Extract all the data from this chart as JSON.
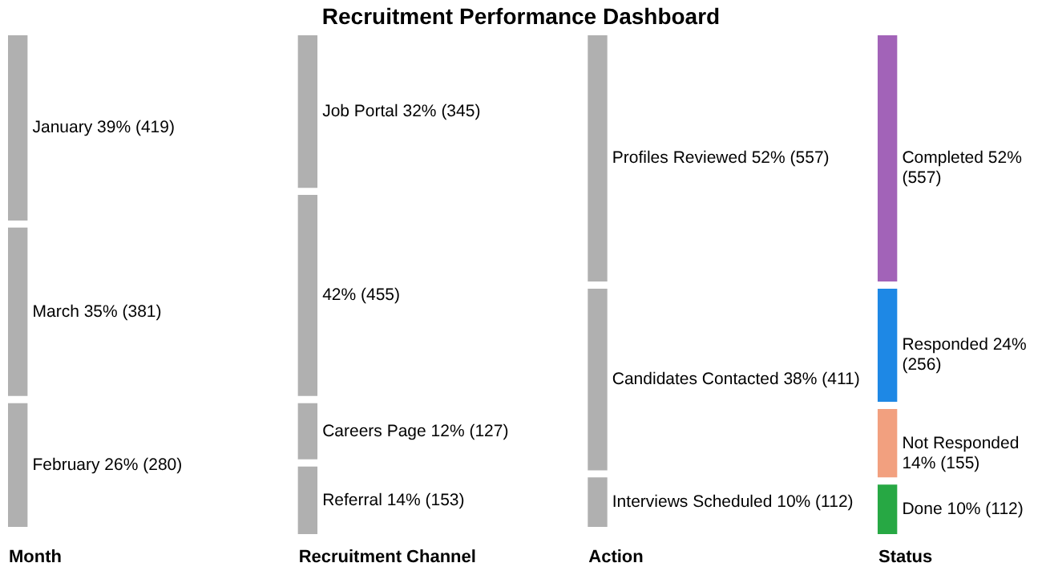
{
  "chart_data": {
    "type": "other",
    "title": "Recruitment Performance Dashboard",
    "categories": [
      "Month",
      "Recruitment Channel",
      "Action",
      "Status"
    ],
    "series": [
      {
        "values": [
          419,
          345,
          557,
          557
        ],
        "colors": [
          "#b0b0b0",
          "#b0b0b0",
          "#b0b0b0",
          "#a263b8"
        ],
        "value_labels": [
          "January 39% (419)",
          "Job Portal 32% (345)",
          "Profiles Reviewed 52% (557)",
          "Completed 52% (557)"
        ]
      },
      {
        "values": [
          381,
          455,
          411,
          256
        ],
        "colors": [
          "#b0b0b0",
          "#b0b0b0",
          "#b0b0b0",
          "#1e88e5"
        ],
        "value_labels": [
          "March 35% (381)",
          "42% (455)",
          "Candidates Contacted 38% (411)",
          "Responded 24% (256)"
        ]
      },
      {
        "values": [
          280,
          127,
          112,
          155
        ],
        "colors": [
          "#b0b0b0",
          "#b0b0b0",
          "#b0b0b0",
          "#f2a07f"
        ],
        "value_labels": [
          "February 26% (280)",
          "Careers Page 12% (127)",
          "Interviews Scheduled 10% (112)",
          "Not Responded 14% (155)"
        ]
      },
      {
        "values": [
          null,
          153,
          null,
          112
        ],
        "colors": [
          null,
          "#b0b0b0",
          null,
          "#27a844"
        ],
        "value_labels": [
          null,
          "Referral 14% (153)",
          null,
          "Done 10% (112)"
        ]
      }
    ]
  }
}
